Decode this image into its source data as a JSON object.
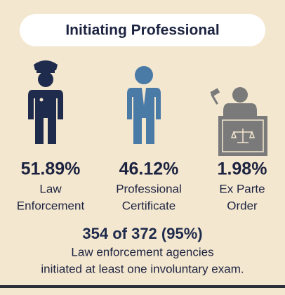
{
  "header": {
    "title": "Initiating Professional"
  },
  "items": [
    {
      "percent": "51.89%",
      "label_lines": [
        "Law",
        "Enforcement"
      ]
    },
    {
      "percent": "46.12%",
      "label_lines": [
        "Professional",
        "Certificate"
      ]
    },
    {
      "percent": "1.98%",
      "label_lines": [
        "Ex Parte",
        "Order"
      ]
    }
  ],
  "footer": {
    "headline": "354 of 372 (95%)",
    "lines": [
      "Law enforcement agencies",
      "initiated at least one involuntary exam."
    ]
  }
}
